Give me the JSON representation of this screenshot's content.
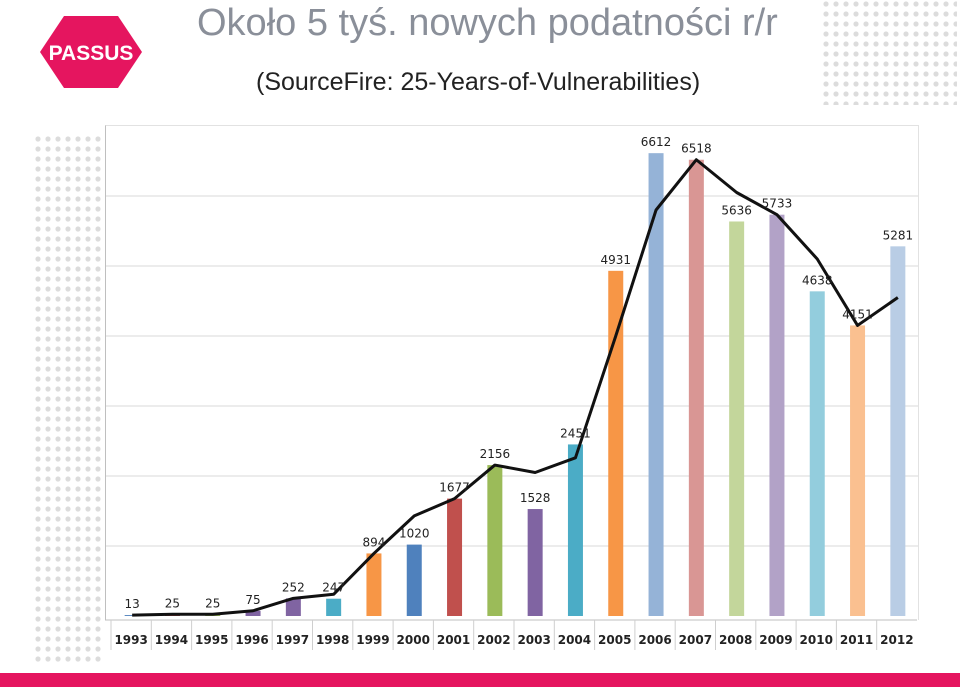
{
  "header": {
    "title": "Około 5 tyś. nowych podatności r/r",
    "subtitle": "(SourceFire: 25-Years-of-Vulnerabilities)"
  },
  "logo": {
    "text": "PASSUS",
    "color": "#e5155f"
  },
  "colors": {
    "accent": "#e5155f",
    "line": "#111111",
    "grid": "#d0d0d0"
  },
  "chart_data": {
    "type": "bar",
    "categories": [
      "1993",
      "1994",
      "1995",
      "1996",
      "1997",
      "1998",
      "1999",
      "2000",
      "2001",
      "2002",
      "2003",
      "2004",
      "2005",
      "2006",
      "2007",
      "2008",
      "2009",
      "2010",
      "2011",
      "2012"
    ],
    "values": [
      13,
      25,
      25,
      75,
      252,
      247,
      894,
      1020,
      1677,
      2156,
      1528,
      2451,
      4931,
      6612,
      6518,
      5636,
      5733,
      4638,
      4151,
      5281
    ],
    "bar_colors": [
      "#4f81bd",
      "#c0504d",
      "#9bbb59",
      "#8064a2",
      "#8064a2",
      "#4bacc6",
      "#f79646",
      "#4f81bd",
      "#c0504d",
      "#9bbb59",
      "#8064a2",
      "#4bacc6",
      "#f79646",
      "#95b3d7",
      "#d99694",
      "#c3d69b",
      "#b2a2c7",
      "#93cddd",
      "#fac090",
      "#b9cde5"
    ],
    "trend_line": [
      13,
      25,
      25,
      75,
      252,
      310,
      894,
      1430,
      1677,
      2156,
      2050,
      2260,
      4000,
      5800,
      6518,
      6050,
      5733,
      5100,
      4151,
      4550
    ],
    "ylim": [
      0,
      7000
    ],
    "grid": true,
    "xlabel": "",
    "ylabel": ""
  }
}
